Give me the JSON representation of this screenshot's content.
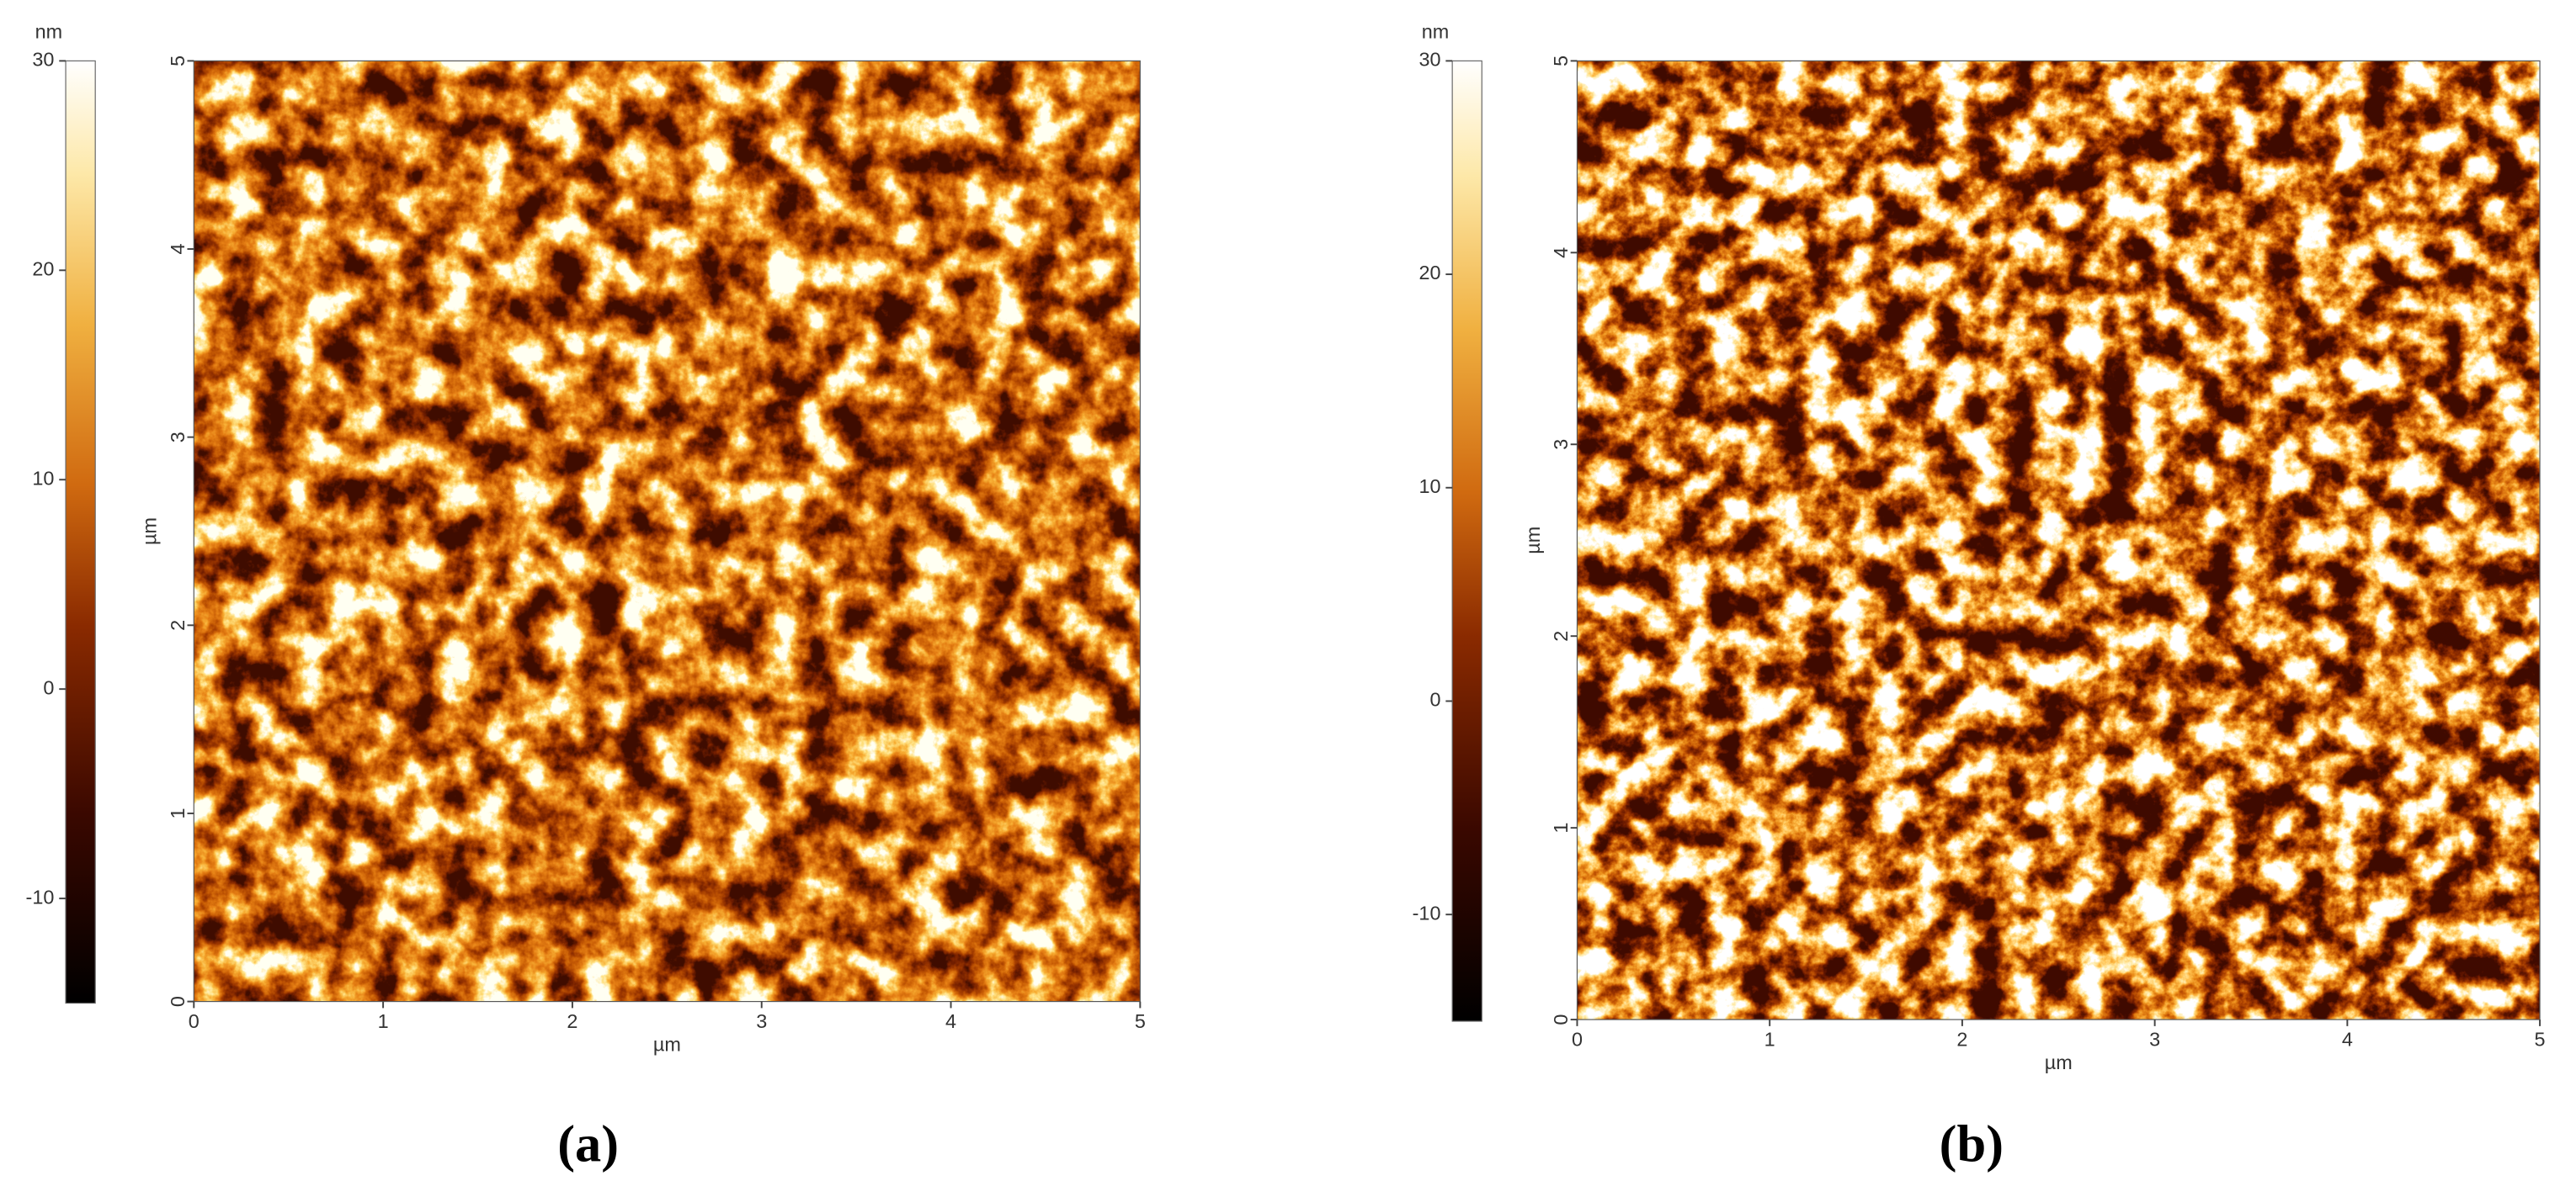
{
  "panels": [
    {
      "label": "(a)",
      "colorbar": {
        "unit": "nm",
        "range": [
          -15,
          30
        ],
        "ticks": [
          30,
          20,
          10,
          0,
          -10
        ]
      },
      "x_axis": {
        "label": "µm",
        "range": [
          0,
          5
        ],
        "ticks": [
          0,
          1,
          2,
          3,
          4,
          5
        ]
      },
      "y_axis": {
        "label": "µm",
        "range": [
          0,
          5
        ],
        "ticks": [
          0,
          1,
          2,
          3,
          4,
          5
        ]
      }
    },
    {
      "label": "(b)",
      "colorbar": {
        "unit": "nm",
        "range": [
          -15,
          30
        ],
        "ticks": [
          30,
          20,
          10,
          0,
          -10
        ]
      },
      "x_axis": {
        "label": "µm",
        "range": [
          0,
          5
        ],
        "ticks": [
          0,
          1,
          2,
          3,
          4,
          5
        ]
      },
      "y_axis": {
        "label": "µm",
        "range": [
          0,
          5
        ],
        "ticks": [
          0,
          1,
          2,
          3,
          4,
          5
        ]
      }
    }
  ]
}
